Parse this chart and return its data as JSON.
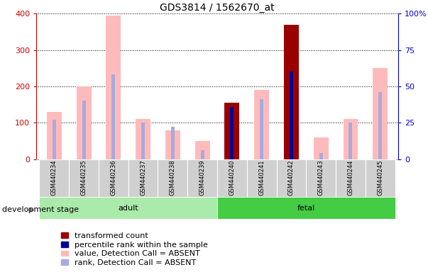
{
  "title": "GDS3814 / 1562670_at",
  "samples": [
    "GSM440234",
    "GSM440235",
    "GSM440236",
    "GSM440237",
    "GSM440238",
    "GSM440239",
    "GSM440240",
    "GSM440241",
    "GSM440242",
    "GSM440243",
    "GSM440244",
    "GSM440245"
  ],
  "groups": [
    "adult",
    "adult",
    "adult",
    "adult",
    "adult",
    "adult",
    "fetal",
    "fetal",
    "fetal",
    "fetal",
    "fetal",
    "fetal"
  ],
  "transformed_count": [
    null,
    null,
    null,
    null,
    null,
    null,
    155,
    null,
    370,
    null,
    null,
    null
  ],
  "percentile_rank": [
    null,
    null,
    null,
    null,
    null,
    null,
    36,
    null,
    60,
    null,
    null,
    null
  ],
  "value_absent": [
    130,
    200,
    395,
    110,
    80,
    50,
    null,
    190,
    null,
    60,
    110,
    250
  ],
  "rank_absent": [
    27,
    40,
    58,
    25,
    22,
    6,
    null,
    41,
    null,
    4,
    25,
    46
  ],
  "adult_color": "#aaeaaa",
  "fetal_color": "#44cc44",
  "group_labels": [
    "adult",
    "fetal"
  ],
  "group_ranges": [
    [
      0,
      5
    ],
    [
      6,
      11
    ]
  ],
  "ylim_left": [
    0,
    400
  ],
  "ylim_right": [
    0,
    100
  ],
  "yticks_left": [
    0,
    100,
    200,
    300,
    400
  ],
  "yticks_right": [
    0,
    25,
    50,
    75,
    100
  ],
  "ylabel_left_color": "#cc0000",
  "ylabel_right_color": "#0000cc",
  "absent_bar_color": "#ffbbbb",
  "absent_rank_color": "#aaaadd",
  "present_bar_color": "#990000",
  "present_rank_color": "#000099",
  "legend_items": [
    {
      "label": "transformed count",
      "color": "#990000"
    },
    {
      "label": "percentile rank within the sample",
      "color": "#000099"
    },
    {
      "label": "value, Detection Call = ABSENT",
      "color": "#ffbbbb"
    },
    {
      "label": "rank, Detection Call = ABSENT",
      "color": "#aaaadd"
    }
  ],
  "stage_label": "development stage",
  "fontsize_title": 10,
  "fontsize_ticks": 8,
  "fontsize_legend": 8,
  "fontsize_stage": 8,
  "fontsize_sample": 6,
  "wide_bar_width": 0.5,
  "narrow_bar_width": 0.12
}
